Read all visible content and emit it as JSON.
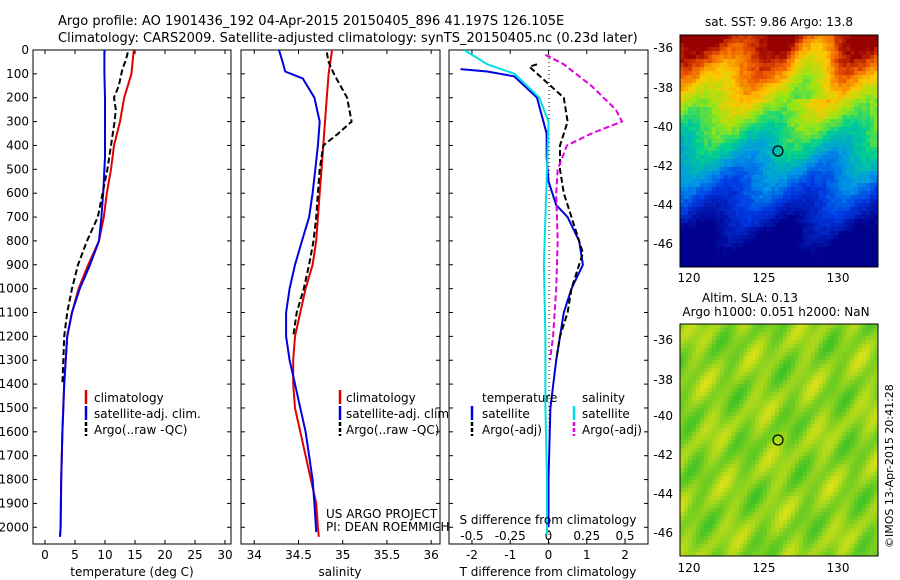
{
  "header": {
    "line1": "Argo profile: AO 1901436_192 04-Apr-2015 20150405_896 41.197S 126.105E",
    "line2": "Climatology: CARS2009. Satellite-adjusted climatology: synTS_20150405.nc (0.23d later)"
  },
  "colors": {
    "climatology": "#e00000",
    "satellite": "#0000e0",
    "argo": "#000000",
    "satellite_s": "#00e0e0",
    "argo_s": "#e000e0"
  },
  "chart_data": [
    {
      "type": "line",
      "id": "temperature",
      "xlabel": "temperature (deg C)",
      "ylabel": "",
      "xlim": [
        -2,
        31
      ],
      "ylim": [
        2070,
        0
      ],
      "xticks": [
        0,
        5,
        10,
        15,
        20,
        25,
        30
      ],
      "yticks": [
        0,
        100,
        200,
        300,
        400,
        500,
        600,
        700,
        800,
        900,
        1000,
        1100,
        1200,
        1300,
        1400,
        1500,
        1600,
        1700,
        1800,
        1900,
        2000
      ],
      "legend": [
        "climatology",
        "satellite-adj. clim.",
        "Argo(..raw -QC)"
      ],
      "legend_placement": "lower-right",
      "series": [
        {
          "name": "climatology",
          "style": "solid",
          "color": "#e00000",
          "x": [
            14.8,
            14.6,
            14.4,
            13.8,
            13.2,
            12.5,
            11.5,
            11.0,
            10.3,
            9.8,
            9.0,
            7.2,
            5.6,
            4.5,
            3.7,
            3.2,
            2.9,
            2.7,
            2.6,
            2.5
          ],
          "y": [
            0,
            50,
            100,
            150,
            200,
            300,
            400,
            500,
            600,
            700,
            800,
            900,
            1000,
            1100,
            1200,
            1400,
            1600,
            1800,
            2000,
            2040
          ]
        },
        {
          "name": "satellite-adj. clim.",
          "style": "solid",
          "color": "#0000e0",
          "x": [
            9.9,
            9.9,
            10.0,
            10.0,
            10.0,
            10.0,
            9.9,
            9.7,
            9.4,
            9.0,
            7.5,
            5.8,
            4.5,
            3.7,
            3.2,
            2.9,
            2.7,
            2.6,
            2.5
          ],
          "y": [
            0,
            100,
            200,
            300,
            400,
            450,
            500,
            600,
            700,
            800,
            900,
            1000,
            1100,
            1200,
            1400,
            1600,
            1800,
            2000,
            2040
          ]
        },
        {
          "name": "Argo(..raw -QC)",
          "style": "dashed",
          "color": "#000000",
          "x": [
            13.8,
            13.5,
            13.2,
            12.9,
            12.3,
            11.5,
            11.8,
            11.6,
            11.0,
            10.4,
            9.6,
            8.8,
            7.0,
            5.5,
            4.5,
            3.7,
            3.2,
            2.9
          ],
          "y": [
            10,
            40,
            60,
            80,
            150,
            200,
            250,
            300,
            400,
            500,
            600,
            700,
            800,
            900,
            1000,
            1100,
            1200,
            1400
          ]
        }
      ]
    },
    {
      "type": "line",
      "id": "salinity",
      "xlabel": "salinity",
      "ylabel": "",
      "xlim": [
        33.85,
        36.1
      ],
      "ylim": [
        2070,
        0
      ],
      "xticks": [
        34,
        34.5,
        35,
        35.5,
        36
      ],
      "legend": [
        "climatology",
        "satellite-adj. clim.",
        "Argo(..raw -QC)"
      ],
      "legend_placement": "lower-right",
      "annotations": [
        "US ARGO PROJECT",
        "PI: DEAN ROEMMICH"
      ],
      "series": [
        {
          "name": "climatology",
          "style": "solid",
          "color": "#e00000",
          "x": [
            34.88,
            34.86,
            34.84,
            34.82,
            34.8,
            34.78,
            34.76,
            34.74,
            34.72,
            34.7,
            34.66,
            34.58,
            34.52,
            34.46,
            34.44,
            34.44,
            34.46,
            34.52,
            34.58,
            34.64,
            34.7,
            34.72,
            34.73
          ],
          "y": [
            0,
            50,
            100,
            200,
            300,
            400,
            500,
            600,
            700,
            800,
            900,
            1000,
            1100,
            1200,
            1300,
            1400,
            1500,
            1600,
            1700,
            1800,
            1900,
            2000,
            2040
          ]
        },
        {
          "name": "satellite-adj. clim.",
          "style": "solid",
          "color": "#0000e0",
          "x": [
            34.28,
            34.32,
            34.35,
            34.55,
            34.68,
            34.74,
            34.72,
            34.69,
            34.66,
            34.62,
            34.54,
            34.46,
            34.4,
            34.36,
            34.36,
            34.4,
            34.46,
            34.52,
            34.58,
            34.62,
            34.66,
            34.68,
            34.7
          ],
          "y": [
            0,
            50,
            90,
            120,
            200,
            300,
            400,
            500,
            600,
            700,
            800,
            900,
            1000,
            1100,
            1200,
            1300,
            1400,
            1500,
            1600,
            1700,
            1800,
            1900,
            2020
          ]
        },
        {
          "name": "Argo(..raw -QC)",
          "style": "dashed",
          "color": "#000000",
          "x": [
            34.82,
            34.84,
            34.9,
            35.05,
            35.1,
            34.95,
            34.78,
            34.74,
            34.72,
            34.7,
            34.67,
            34.62,
            34.56,
            34.48,
            34.44
          ],
          "y": [
            10,
            50,
            100,
            200,
            300,
            350,
            400,
            500,
            600,
            700,
            800,
            900,
            1000,
            1100,
            1200
          ]
        }
      ]
    },
    {
      "type": "line",
      "id": "difference",
      "xlabel": "T difference from climatology",
      "x2label": "S difference from climatology",
      "ylabel": "",
      "xlim": [
        -2.6,
        2.6
      ],
      "x2lim": [
        -0.65,
        0.65
      ],
      "ylim": [
        2070,
        0
      ],
      "xticks": [
        -2,
        -1,
        0,
        1,
        2
      ],
      "x2ticks": [
        -0.5,
        -0.25,
        0,
        0.25,
        0.5
      ],
      "legend": [
        {
          "group": "temperature",
          "items": [
            "satellite",
            "Argo(-adj)"
          ]
        },
        {
          "group": "salinity",
          "items": [
            "satellite",
            "Argo(-adj)"
          ]
        }
      ],
      "legend_placement": "lower-center",
      "series": [
        {
          "name": "satellite",
          "group": "temperature",
          "style": "solid",
          "color": "#0000e0",
          "x": [
            -2.3,
            -1.6,
            -0.9,
            -0.3,
            -0.05,
            -0.05,
            0.0,
            0.2,
            0.5,
            0.8,
            0.9,
            0.6,
            0.4,
            0.2,
            0.05,
            0.0,
            0.0
          ],
          "y": [
            80,
            90,
            110,
            200,
            350,
            450,
            550,
            650,
            700,
            800,
            900,
            1000,
            1100,
            1300,
            1500,
            1800,
            2000
          ]
        },
        {
          "name": "Argo(-adj)",
          "group": "temperature",
          "style": "dashed",
          "color": "#000000",
          "x": [
            -0.3,
            -0.5,
            0.4,
            0.5,
            0.3,
            0.3,
            0.4,
            0.6,
            0.9,
            0.6,
            0.5,
            0.3,
            0.2
          ],
          "y": [
            60,
            70,
            200,
            300,
            400,
            500,
            600,
            700,
            850,
            1000,
            1100,
            1200,
            1300
          ]
        },
        {
          "name": "satellite",
          "group": "salinity",
          "style": "solid",
          "color": "#00e0e0",
          "x": [
            -0.55,
            -0.4,
            -0.22,
            -0.06,
            0.0,
            -0.01,
            -0.02,
            -0.03,
            -0.02,
            -0.02,
            -0.01,
            -0.01
          ],
          "y": [
            0,
            60,
            100,
            200,
            300,
            500,
            700,
            900,
            1200,
            1500,
            1800,
            2030
          ]
        },
        {
          "name": "Argo(-adj)",
          "group": "salinity",
          "style": "dashed",
          "color": "#e000e0",
          "x": [
            -0.02,
            0.1,
            0.28,
            0.36,
            0.44,
            0.48,
            0.28,
            0.12,
            0.06,
            0.05,
            0.06,
            0.05,
            0.03,
            0.01
          ],
          "y": [
            20,
            60,
            150,
            200,
            250,
            300,
            350,
            400,
            500,
            600,
            800,
            1000,
            1200,
            1300
          ]
        }
      ]
    }
  ],
  "maps": {
    "sst": {
      "title": "sat. SST: 9.86  Argo: 13.8",
      "xticks": [
        "120",
        "125",
        "130"
      ],
      "yticks": [
        "-36",
        "-38",
        "-40",
        "-42",
        "-44",
        "-46"
      ]
    },
    "sla": {
      "title1": "Altim. SLA: 0.13",
      "title2": "Argo h1000: 0.051 h2000: NaN",
      "xticks": [
        "120",
        "125",
        "130"
      ],
      "yticks": [
        "-36",
        "-38",
        "-40",
        "-42",
        "-44",
        "-46"
      ]
    }
  },
  "watermark": "©IMOS 13-Apr-2015 20:41:28"
}
